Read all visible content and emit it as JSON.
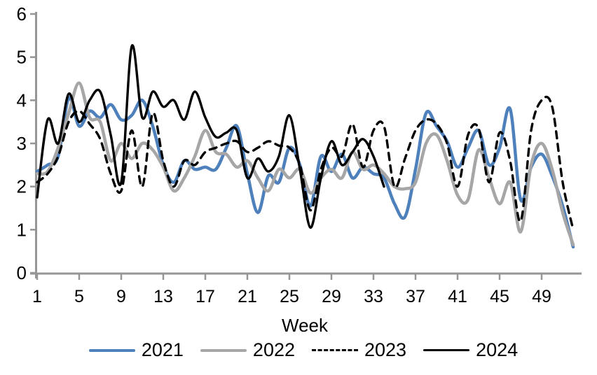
{
  "chart_data": {
    "type": "line",
    "title": "",
    "xlabel": "Week",
    "ylabel": "",
    "xlim": [
      1,
      52.8
    ],
    "ylim": [
      0,
      6
    ],
    "x_ticks": [
      1,
      5,
      9,
      13,
      17,
      21,
      25,
      29,
      33,
      37,
      41,
      45,
      49
    ],
    "y_ticks": [
      0,
      1,
      2,
      3,
      4,
      5,
      6
    ],
    "grid": false,
    "legend_position": "bottom",
    "smoothed_lines": true,
    "axis_color": "#969696",
    "label_color": "#000000",
    "x": [
      1,
      2,
      3,
      4,
      5,
      6,
      7,
      8,
      9,
      10,
      11,
      12,
      13,
      14,
      15,
      16,
      17,
      18,
      19,
      20,
      21,
      22,
      23,
      24,
      25,
      26,
      27,
      28,
      29,
      30,
      31,
      32,
      33,
      34,
      35,
      36,
      37,
      38,
      39,
      40,
      41,
      42,
      43,
      44,
      45,
      46,
      47,
      48,
      49,
      50,
      51,
      52
    ],
    "series": [
      {
        "label": "2021",
        "color": "#4E80BC",
        "style": "solid",
        "line_width": 4.5,
        "values": [
          2.35,
          2.5,
          2.7,
          4.05,
          3.4,
          3.75,
          3.6,
          3.9,
          3.55,
          3.65,
          4.0,
          3.4,
          2.5,
          2.1,
          2.6,
          2.4,
          2.45,
          2.4,
          2.9,
          3.4,
          2.3,
          1.4,
          2.25,
          2.1,
          2.9,
          2.5,
          1.55,
          2.7,
          2.35,
          2.75,
          2.2,
          2.45,
          2.3,
          2.2,
          1.6,
          1.3,
          2.4,
          3.7,
          3.4,
          3.05,
          2.45,
          2.9,
          3.3,
          2.5,
          2.9,
          3.8,
          1.7,
          2.45,
          2.75,
          2.25,
          1.55,
          0.6
        ]
      },
      {
        "label": "2022",
        "color": "#A6A6A6",
        "style": "solid",
        "line_width": 4.5,
        "values": [
          2.3,
          2.35,
          2.9,
          3.7,
          4.4,
          3.6,
          3.5,
          2.6,
          3.0,
          2.65,
          3.0,
          2.85,
          2.45,
          1.9,
          2.2,
          2.7,
          3.3,
          2.8,
          2.75,
          2.45,
          2.6,
          2.2,
          1.9,
          2.4,
          2.2,
          2.4,
          1.85,
          2.2,
          2.4,
          2.2,
          2.8,
          2.4,
          2.5,
          2.3,
          2.0,
          1.95,
          2.1,
          3.0,
          3.2,
          2.6,
          1.8,
          1.7,
          2.85,
          2.2,
          1.6,
          2.1,
          0.95,
          2.5,
          3.0,
          2.4,
          1.4,
          0.65
        ]
      },
      {
        "label": "2023",
        "color": "#000000",
        "style": "dashed",
        "line_width": 3.4,
        "values": [
          2.1,
          2.3,
          2.7,
          3.5,
          3.75,
          3.45,
          3.1,
          2.3,
          1.9,
          3.3,
          2.0,
          3.7,
          2.6,
          2.0,
          2.6,
          2.5,
          2.8,
          2.9,
          3.0,
          3.05,
          2.8,
          2.9,
          3.05,
          2.95,
          2.9,
          2.5,
          1.45,
          2.4,
          2.9,
          2.7,
          3.45,
          2.45,
          3.3,
          3.4,
          2.0,
          2.65,
          3.3,
          3.55,
          3.45,
          3.0,
          2.0,
          3.2,
          3.35,
          2.1,
          3.25,
          2.6,
          1.2,
          3.3,
          4.0,
          3.85,
          2.1,
          1.0
        ]
      },
      {
        "label": "2024",
        "color": "#000000",
        "style": "solid",
        "line_width": 3.4,
        "values": [
          1.75,
          3.55,
          3.0,
          4.15,
          3.5,
          4.0,
          4.2,
          3.2,
          2.1,
          5.25,
          3.6,
          4.2,
          3.85,
          4.0,
          3.55,
          4.2,
          3.6,
          3.15,
          3.25,
          3.3,
          2.2,
          2.65,
          2.35,
          2.7,
          3.65,
          2.4,
          1.05,
          2.2,
          3.05,
          2.5,
          2.8,
          3.1,
          2.7,
          2.0
        ]
      }
    ]
  }
}
